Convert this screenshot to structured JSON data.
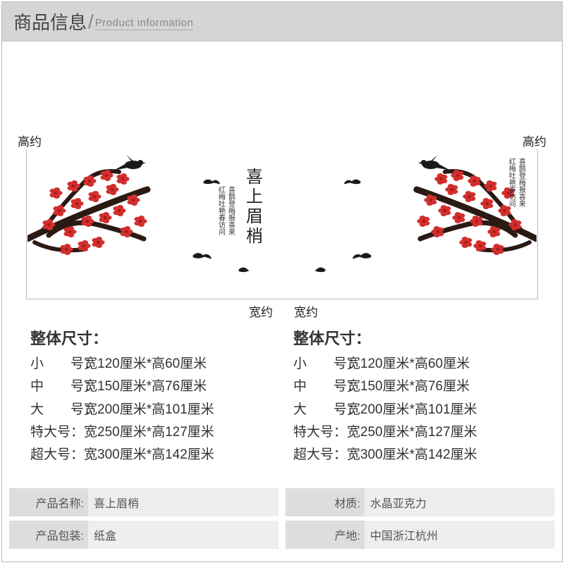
{
  "header": {
    "zh": "商品信息",
    "slash": "/",
    "en": "Product information"
  },
  "labels": {
    "height": "高约",
    "width": "宽约"
  },
  "art": {
    "title_chars": [
      "喜",
      "上",
      "眉",
      "梢"
    ],
    "branch_color": "#2b1a14",
    "flower_color": "#d22e2e",
    "flower_dark": "#a31818",
    "bird_color": "#1a1a1a"
  },
  "sizes": {
    "title": "整体尺寸：",
    "rows": [
      {
        "label": "小　　号",
        "value": "宽120厘米*高60厘米"
      },
      {
        "label": "中　　号",
        "value": "宽150厘米*高76厘米"
      },
      {
        "label": "大　　号",
        "value": "宽200厘米*高101厘米"
      },
      {
        "label": "特大号",
        "value": "宽250厘米*高127厘米"
      },
      {
        "label": "超大号",
        "value": "宽300厘米*高142厘米"
      }
    ]
  },
  "info": {
    "name_k": "产品名称:",
    "name_v": "喜上眉梢",
    "mat_k": "材质:",
    "mat_v": "水晶亚克力",
    "pack_k": "产品包装:",
    "pack_v": "纸盒",
    "orig_k": "产地:",
    "orig_v": "中国浙江杭州"
  },
  "colors": {
    "header_bg": "#d5d5d5",
    "cell_k_bg": "#dddddd",
    "cell_v_bg": "#eeeeee",
    "line": "#bbbbbb"
  }
}
